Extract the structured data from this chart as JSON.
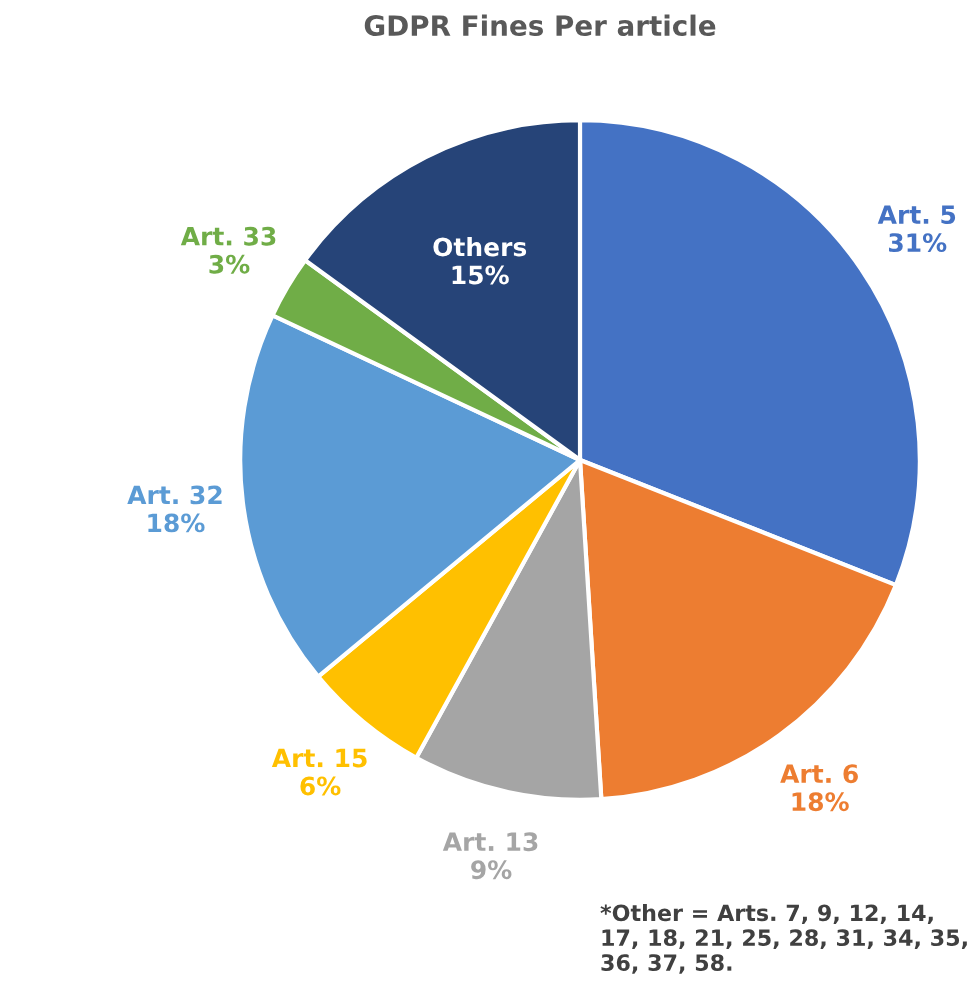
{
  "chart_data": {
    "type": "pie",
    "title": "GDPR Fines Per article",
    "categories": [
      "Art. 5",
      "Art. 6",
      "Art. 13",
      "Art. 15",
      "Art. 32",
      "Art. 33",
      "Others"
    ],
    "values": [
      31,
      18,
      9,
      6,
      18,
      3,
      15
    ],
    "value_labels": [
      "31%",
      "18%",
      "9%",
      "6%",
      "18%",
      "3%",
      "15%"
    ],
    "colors": [
      "#4472c4",
      "#ed7d31",
      "#a5a5a5",
      "#ffc000",
      "#5b9bd5",
      "#70ad47",
      "#264478"
    ],
    "annotations": [
      "*Other = Arts. 7, 9, 12, 14, 17, 18, 21, 25, 28, 31, 34, 35, 36, 37, 58."
    ],
    "legend": false
  }
}
